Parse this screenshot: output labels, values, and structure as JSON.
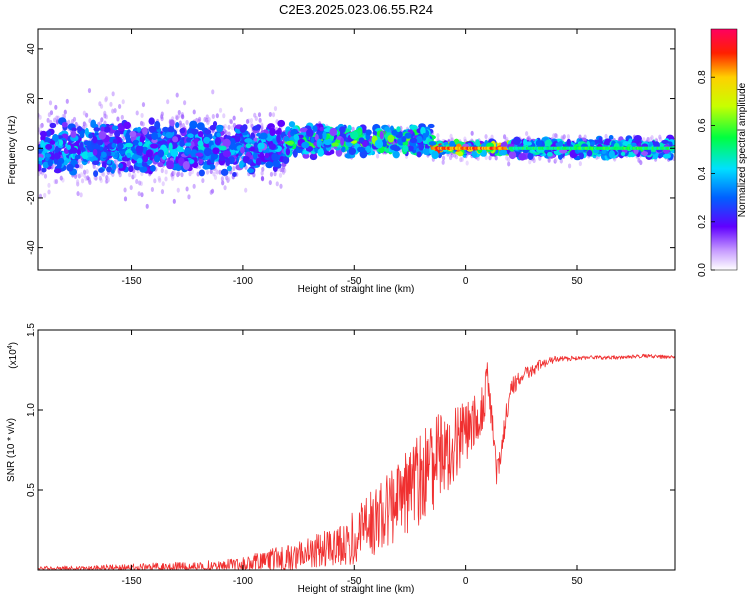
{
  "chart_data": [
    {
      "type": "heatmap",
      "title": "C2E3.2025.023.06.55.R24",
      "xlabel": "Height of straight line (km)",
      "ylabel": "Frequency (Hz)",
      "xlim": [
        -192,
        94
      ],
      "ylim": [
        -49,
        48
      ],
      "xticks": [
        -150,
        -100,
        -50,
        0,
        50
      ],
      "yticks": [
        -40,
        -20,
        0,
        20,
        40
      ],
      "grid": false,
      "colorbar": {
        "label": "Normalized spectral amplitude",
        "range": [
          0,
          1
        ],
        "ticks": [
          0.0,
          0.2,
          0.4,
          0.6,
          0.8
        ]
      },
      "segments": [
        {
          "x_start": -192,
          "x_end": -80,
          "pattern": "scattered",
          "amp": 0.35,
          "center_hz": 0,
          "spread_hz": 8
        },
        {
          "x_start": -80,
          "x_end": -15,
          "pattern": "patchy",
          "amp": 0.55,
          "center_hz": 3,
          "spread_hz": 5
        },
        {
          "x_start": -15,
          "x_end": 20,
          "pattern": "narrowband",
          "amp": 0.95,
          "center_hz": 0,
          "spread_hz": 2
        },
        {
          "x_start": 20,
          "x_end": 94,
          "pattern": "steady-line",
          "amp": 0.45,
          "center_hz": 0,
          "spread_hz": 3
        }
      ]
    },
    {
      "type": "line",
      "xlabel": "Height of straight line (km)",
      "ylabel": "SNR (10 * v/v)",
      "y_multiplier": "(x10",
      "y_multiplier_exp": "4",
      "xlim": [
        -192,
        94
      ],
      "ylim": [
        0,
        1.5
      ],
      "xticks": [
        -150,
        -100,
        -50,
        0,
        50
      ],
      "yticks": [
        0.5,
        1.0,
        1.5
      ],
      "grid": false,
      "color": "#f03030",
      "series": [
        {
          "x": [
            -192,
            -180,
            -160,
            -140,
            -120,
            -100,
            -90,
            -80,
            -70,
            -60,
            -50,
            -45,
            -40,
            -35,
            -30,
            -25,
            -20,
            -15,
            -10,
            -5,
            0,
            5,
            8,
            10,
            12,
            14,
            20,
            25,
            30,
            35,
            40,
            50,
            60,
            70,
            80,
            94
          ],
          "y": [
            0.01,
            0.01,
            0.01,
            0.02,
            0.02,
            0.04,
            0.07,
            0.09,
            0.13,
            0.17,
            0.24,
            0.3,
            0.36,
            0.42,
            0.48,
            0.55,
            0.62,
            0.7,
            0.78,
            0.86,
            0.92,
            0.98,
            1.05,
            1.25,
            0.95,
            0.6,
            1.15,
            1.22,
            1.26,
            1.3,
            1.32,
            1.33,
            1.33,
            1.33,
            1.34,
            1.33
          ],
          "noise": [
            0.02,
            0.02,
            0.03,
            0.03,
            0.04,
            0.05,
            0.07,
            0.08,
            0.1,
            0.12,
            0.17,
            0.2,
            0.22,
            0.24,
            0.26,
            0.28,
            0.3,
            0.3,
            0.28,
            0.25,
            0.2,
            0.16,
            0.14,
            0.12,
            0.12,
            0.1,
            0.07,
            0.05,
            0.04,
            0.03,
            0.02,
            0.015,
            0.012,
            0.012,
            0.012,
            0.012
          ]
        }
      ]
    }
  ]
}
